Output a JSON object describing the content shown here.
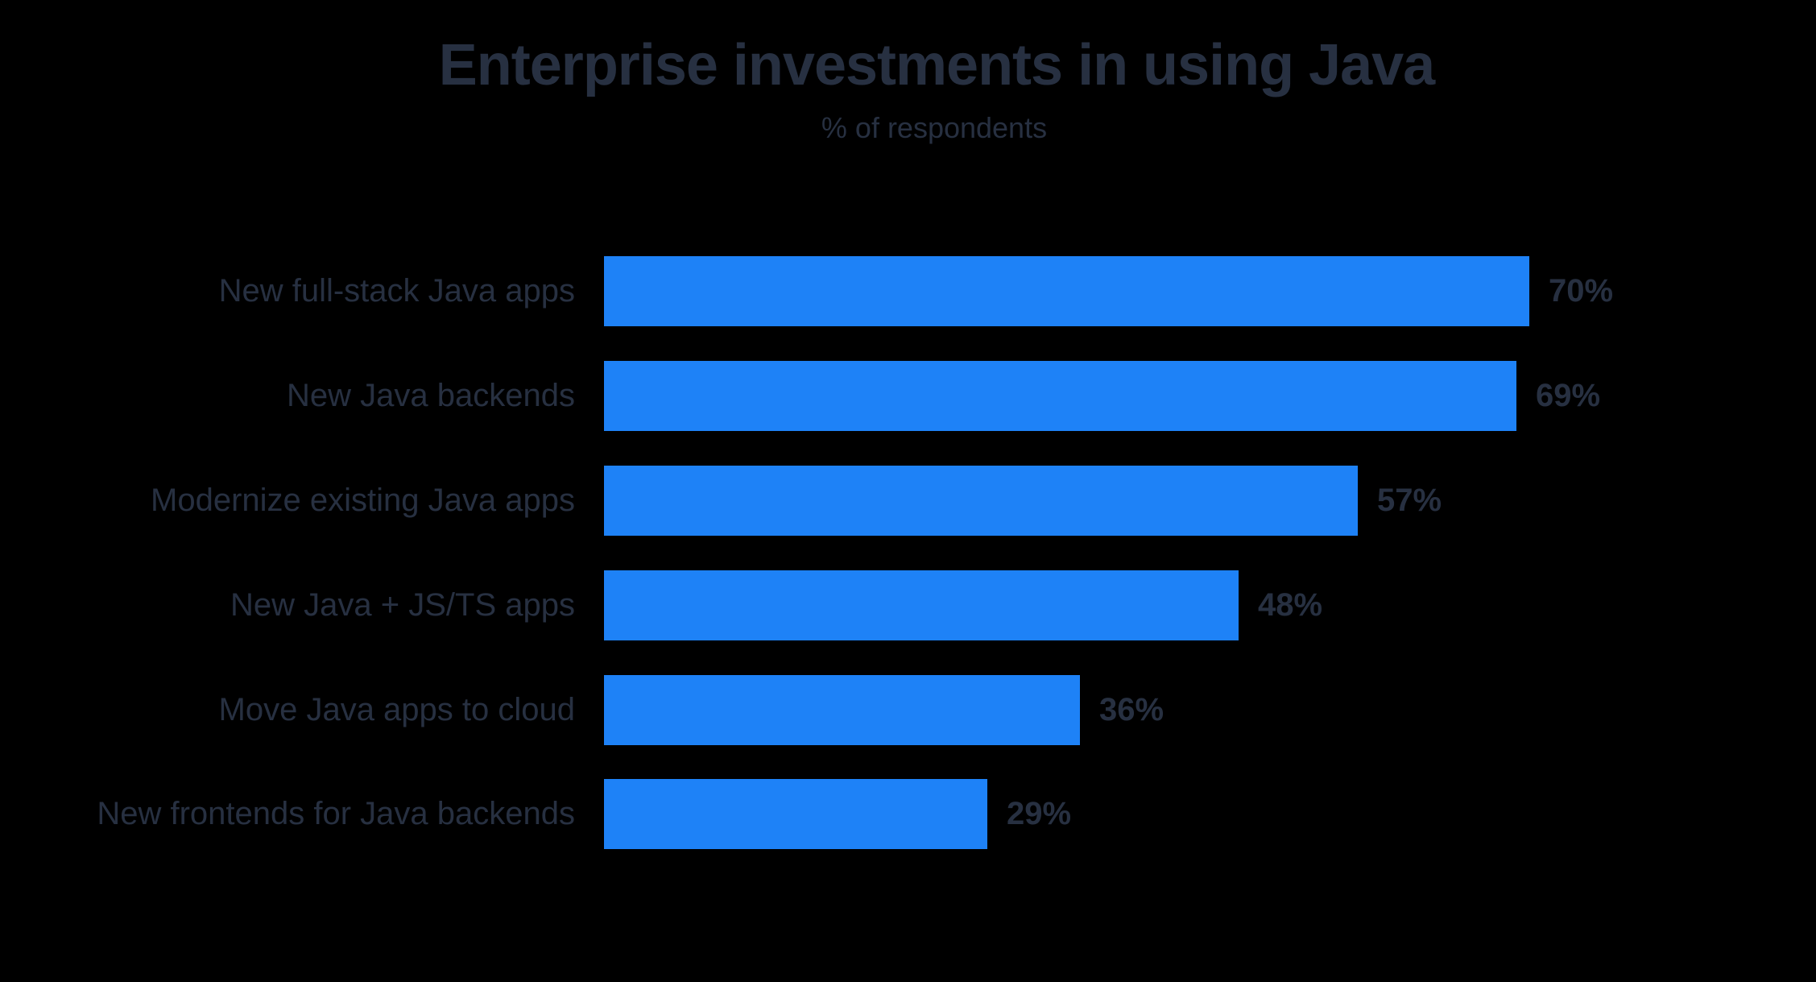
{
  "title": "Enterprise investments in using Java",
  "subtitle": "% of respondents",
  "colors": {
    "background": "#000000",
    "bar": "#1e82f7",
    "text": "#273041"
  },
  "chart_data": {
    "type": "bar",
    "orientation": "horizontal",
    "title": "Enterprise investments in using Java",
    "subtitle": "% of respondents",
    "categories": [
      "New full-stack Java apps",
      "New Java backends",
      "Modernize existing Java apps",
      "New Java + JS/TS apps",
      "Move Java apps to cloud",
      "New frontends for Java backends"
    ],
    "values": [
      70,
      69,
      57,
      48,
      36,
      29
    ],
    "value_suffix": "%",
    "value_labels": [
      "70%",
      "69%",
      "57%",
      "48%",
      "36%",
      "29%"
    ],
    "xlabel": "",
    "ylabel": "",
    "xlim": [
      0,
      100
    ],
    "grid": false,
    "legend": false,
    "axes_visible": false
  }
}
